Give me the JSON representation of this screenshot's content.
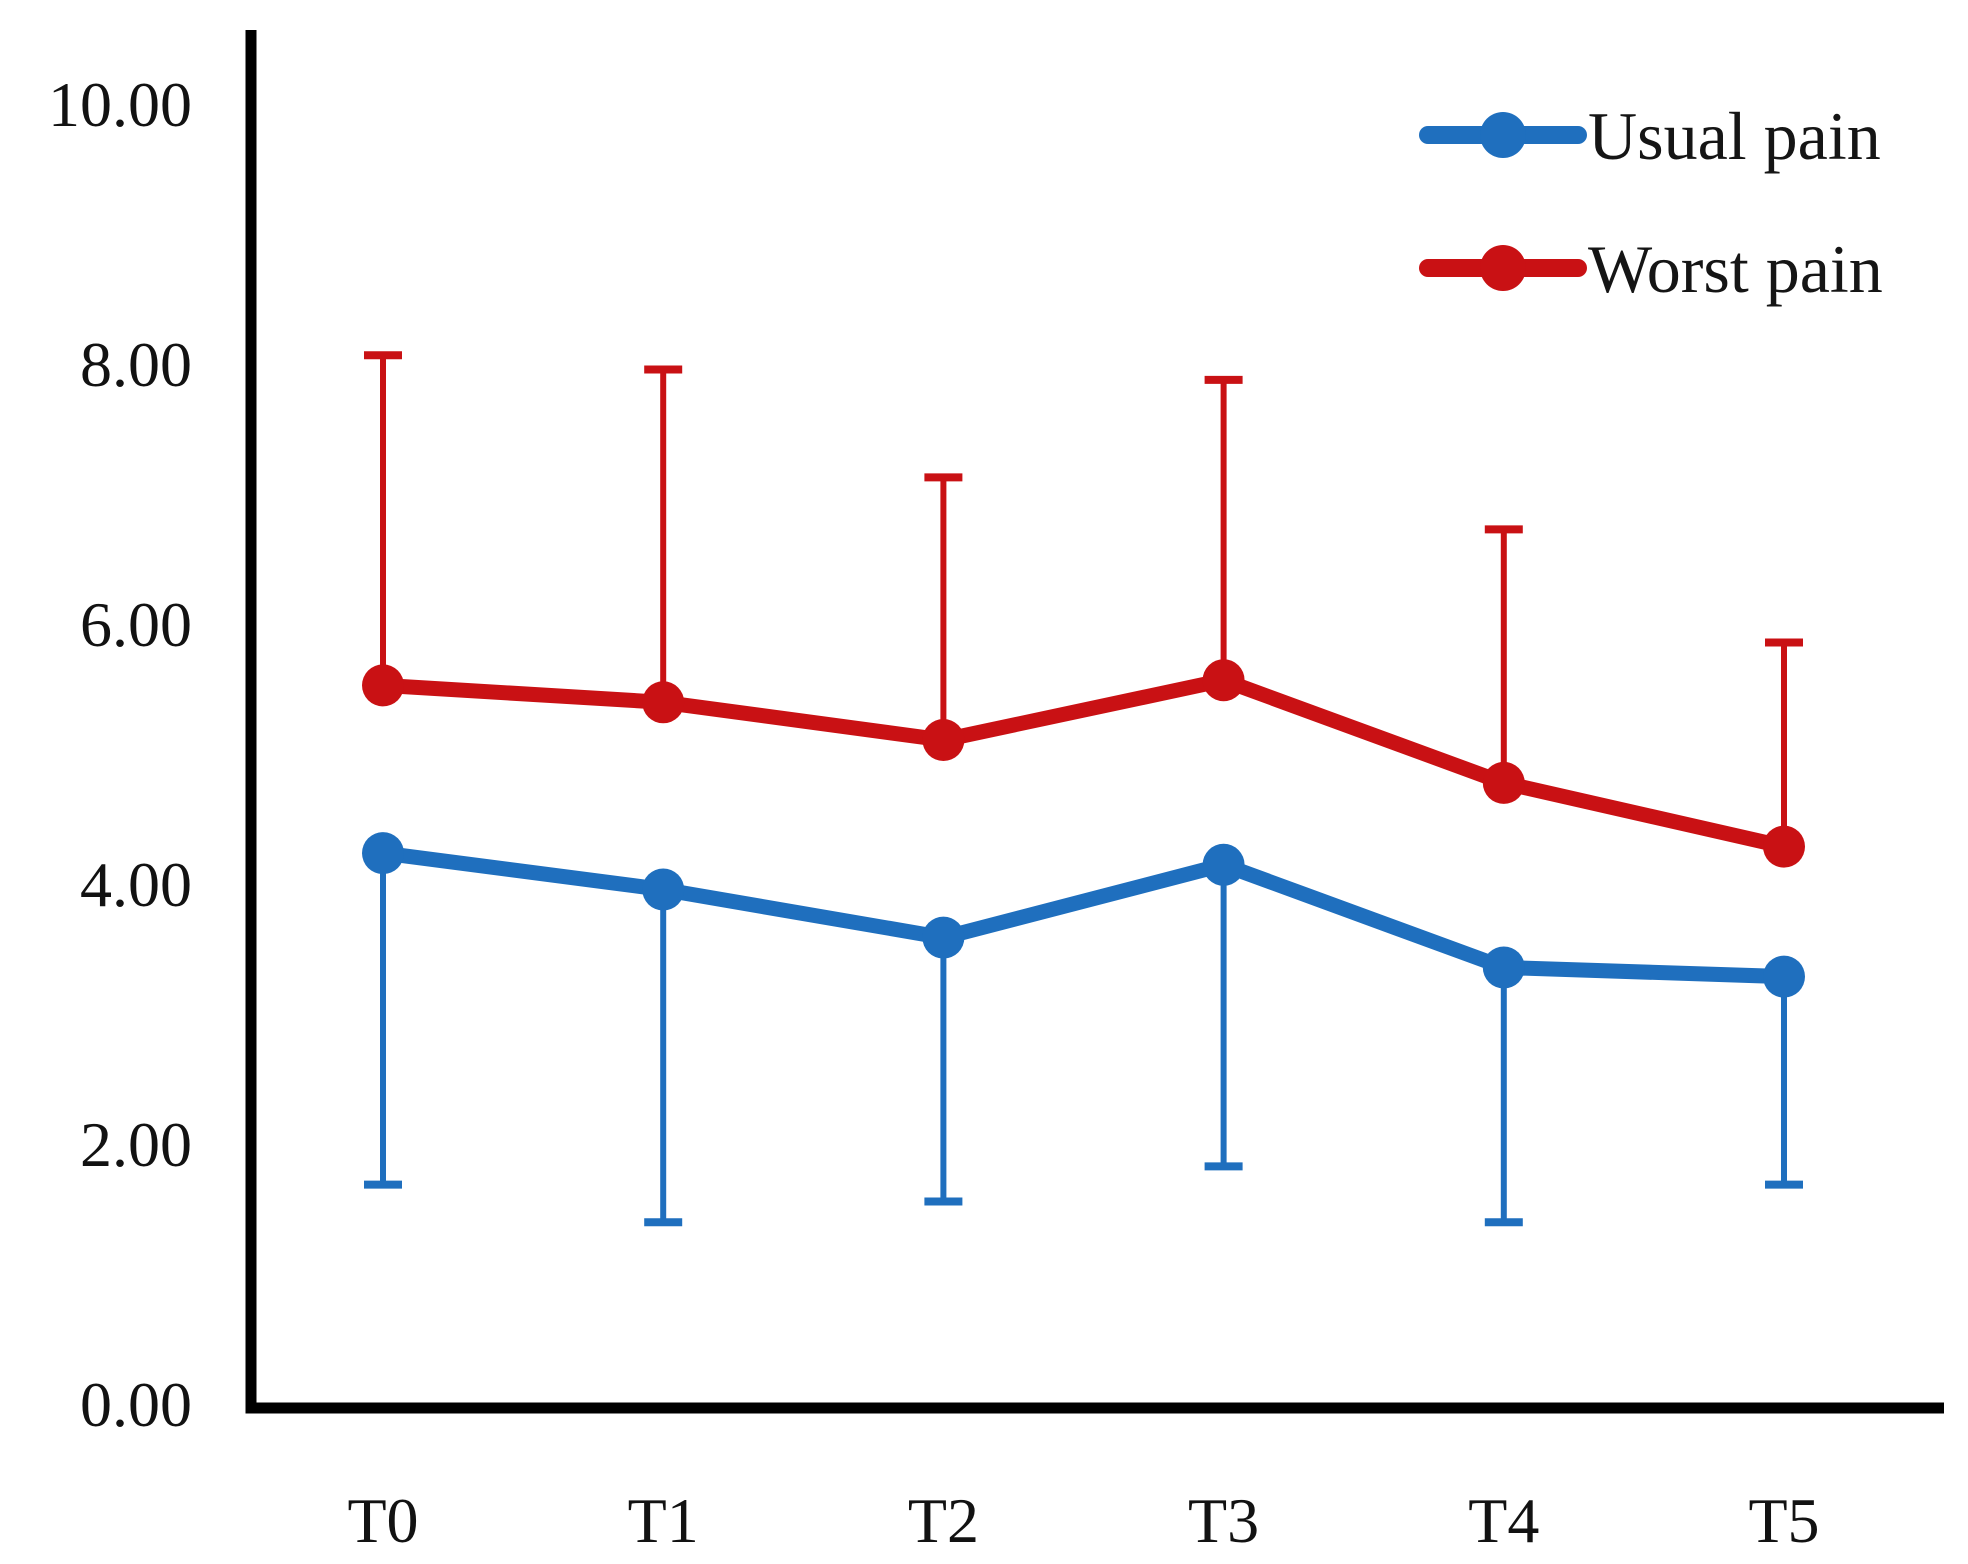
{
  "chart_data": {
    "type": "line",
    "title": "",
    "xlabel": "",
    "ylabel": "",
    "categories": [
      "T0",
      "T1",
      "T2",
      "T3",
      "T4",
      "T5"
    ],
    "ylim": [
      0,
      10
    ],
    "y_ticks": [
      {
        "value": 0,
        "label": "0.00"
      },
      {
        "value": 2,
        "label": "2.00"
      },
      {
        "value": 4,
        "label": "4.00"
      },
      {
        "value": 6,
        "label": "6.00"
      },
      {
        "value": 8,
        "label": "8.00"
      },
      {
        "value": 10,
        "label": "10.00"
      }
    ],
    "grid": false,
    "legend_position": "top-right",
    "axis_color": "#000000",
    "background_color": "#ffffff",
    "series": [
      {
        "name": "Usual pain",
        "color": "#1f6fbe",
        "values": [
          4.23,
          3.95,
          3.58,
          4.14,
          3.35,
          3.28
        ],
        "error_direction": "down",
        "error_bar_ends": [
          1.68,
          1.39,
          1.55,
          1.82,
          1.39,
          1.68
        ]
      },
      {
        "name": "Worst pain",
        "color": "#c91114",
        "values": [
          5.52,
          5.39,
          5.1,
          5.56,
          4.77,
          4.28
        ],
        "error_direction": "up",
        "error_bar_ends": [
          8.06,
          7.95,
          7.12,
          7.87,
          6.72,
          5.85
        ]
      }
    ]
  }
}
